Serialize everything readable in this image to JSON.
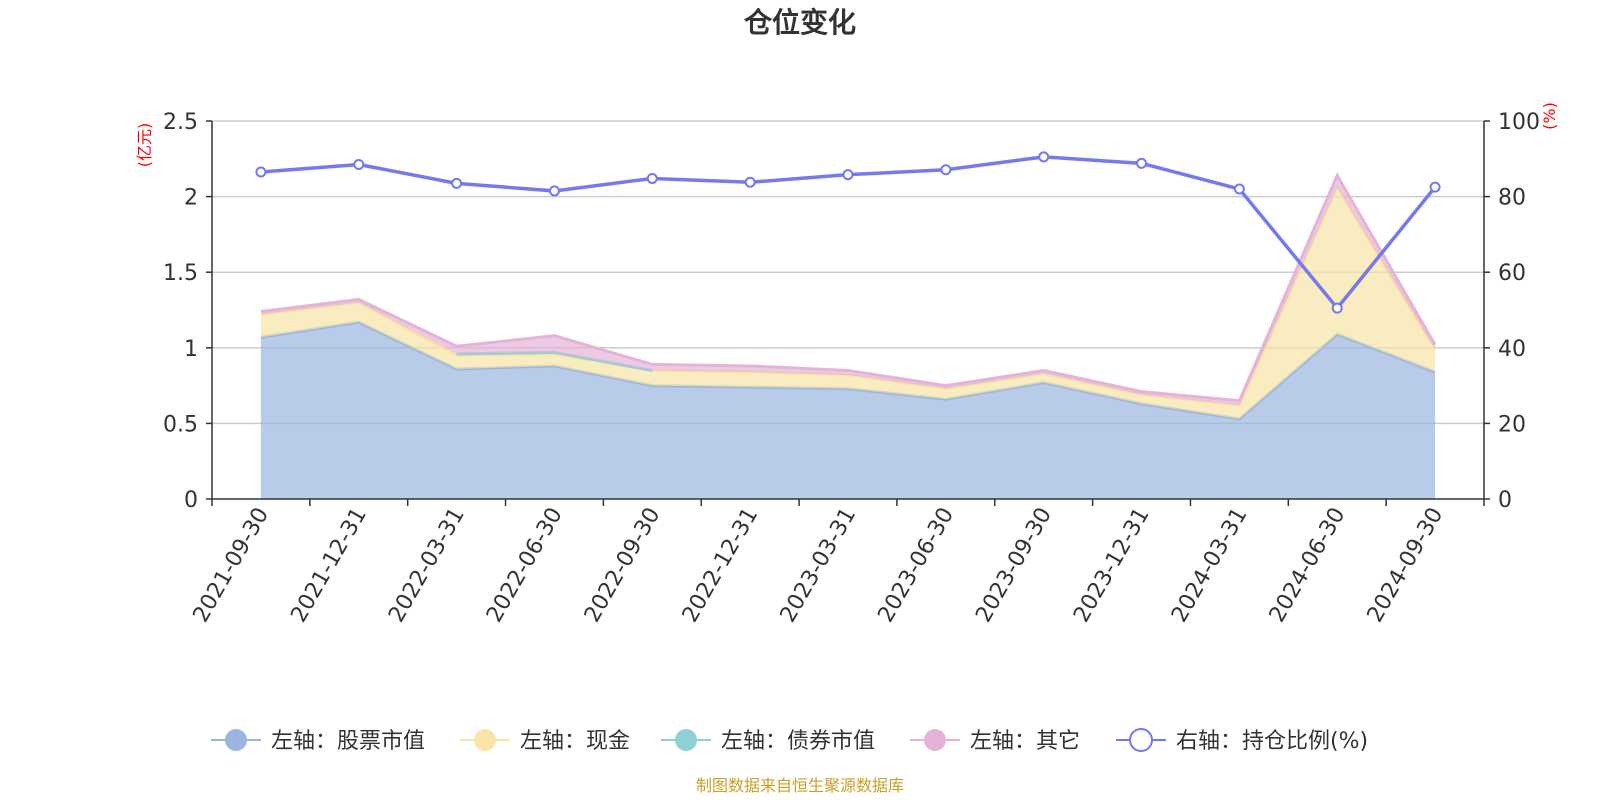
{
  "chart_data": {
    "type": "area",
    "title": "仓位变化",
    "categories": [
      "2021-09-30",
      "2021-12-31",
      "2022-03-31",
      "2022-06-30",
      "2022-09-30",
      "2022-12-31",
      "2023-03-31",
      "2023-06-30",
      "2023-09-30",
      "2023-12-31",
      "2024-03-31",
      "2024-06-30",
      "2024-09-30"
    ],
    "left_axis": {
      "unit": "(亿元)",
      "ylim": [
        0,
        2.5
      ],
      "ticks": [
        "0",
        "0.5",
        "1",
        "1.5",
        "2",
        "2.5"
      ]
    },
    "right_axis": {
      "unit": "(%)",
      "ylim": [
        0,
        100
      ],
      "ticks": [
        "0",
        "20",
        "40",
        "60",
        "80",
        "100"
      ]
    },
    "stacked_series": [
      {
        "name": "左轴：股票市值",
        "color": "#9ab6e0",
        "values": [
          1.07,
          1.17,
          0.86,
          0.88,
          0.75,
          0.74,
          0.73,
          0.66,
          0.77,
          0.63,
          0.53,
          1.09,
          0.84
        ]
      },
      {
        "name": "左轴：现金",
        "color": "#f7e4a6",
        "values": [
          0.15,
          0.13,
          0.09,
          0.08,
          0.1,
          0.1,
          0.09,
          0.07,
          0.06,
          0.06,
          0.09,
          0.97,
          0.15
        ]
      },
      {
        "name": "左轴：债券市值",
        "color": "#8fd0d4",
        "values": [
          0,
          0,
          0.01,
          0.01,
          0,
          0,
          0,
          0,
          0,
          0,
          0,
          0,
          0
        ]
      },
      {
        "name": "左轴：其它",
        "color": "#e5b3d9",
        "values": [
          0.02,
          0.02,
          0.05,
          0.11,
          0.04,
          0.04,
          0.03,
          0.02,
          0.02,
          0.02,
          0.03,
          0.08,
          0.03
        ]
      }
    ],
    "line_series": {
      "name": "右轴：持仓比例(%)",
      "color": "#7479ee",
      "values": [
        86.5,
        88.5,
        83.5,
        81.5,
        84.8,
        83.8,
        85.8,
        87.1,
        90.5,
        88.8,
        82.0,
        50.5,
        82.5
      ]
    },
    "grid": true,
    "legend_position": "bottom"
  },
  "legend": {
    "items": [
      {
        "label": "左轴：股票市值",
        "color": "#9ab6e0",
        "shape": "filled-circle"
      },
      {
        "label": "左轴：现金",
        "color": "#f7e4a6",
        "shape": "filled-circle"
      },
      {
        "label": "左轴：债券市值",
        "color": "#8fd0d4",
        "shape": "filled-circle"
      },
      {
        "label": "左轴：其它",
        "color": "#e5b3d9",
        "shape": "filled-circle"
      },
      {
        "label": "右轴：持仓比例(%)",
        "color": "#7479ee",
        "shape": "hollow-circle"
      }
    ]
  },
  "source_text": "制图数据来自恒生聚源数据库"
}
